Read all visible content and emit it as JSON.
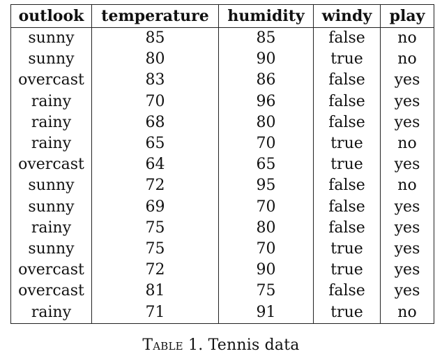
{
  "table": {
    "columns": [
      "outlook",
      "temperature",
      "humidity",
      "windy",
      "play"
    ],
    "rows": [
      [
        "sunny",
        "85",
        "85",
        "false",
        "no"
      ],
      [
        "sunny",
        "80",
        "90",
        "true",
        "no"
      ],
      [
        "overcast",
        "83",
        "86",
        "false",
        "yes"
      ],
      [
        "rainy",
        "70",
        "96",
        "false",
        "yes"
      ],
      [
        "rainy",
        "68",
        "80",
        "false",
        "yes"
      ],
      [
        "rainy",
        "65",
        "70",
        "true",
        "no"
      ],
      [
        "overcast",
        "64",
        "65",
        "true",
        "yes"
      ],
      [
        "sunny",
        "72",
        "95",
        "false",
        "no"
      ],
      [
        "sunny",
        "69",
        "70",
        "false",
        "yes"
      ],
      [
        "rainy",
        "75",
        "80",
        "false",
        "yes"
      ],
      [
        "sunny",
        "75",
        "70",
        "true",
        "yes"
      ],
      [
        "overcast",
        "72",
        "90",
        "true",
        "yes"
      ],
      [
        "overcast",
        "81",
        "75",
        "false",
        "yes"
      ],
      [
        "rainy",
        "71",
        "91",
        "true",
        "no"
      ]
    ]
  },
  "caption": {
    "label": "Table 1.",
    "text": "Tennis data"
  }
}
